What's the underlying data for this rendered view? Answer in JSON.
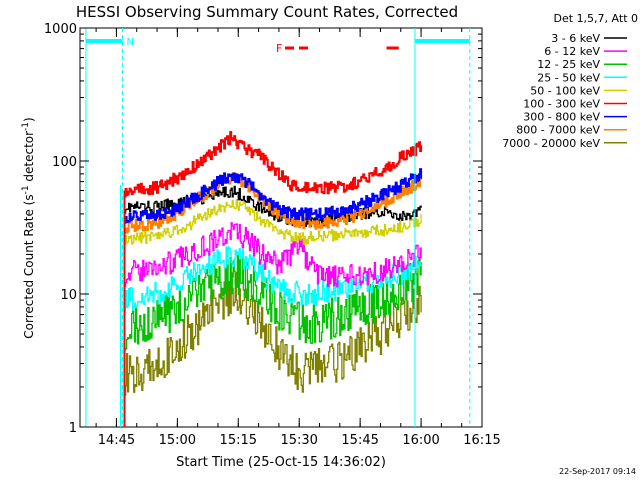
{
  "chart_data": {
    "type": "line",
    "title": "HESSI Observing Summary Count Rates, Corrected",
    "xlabel": "Start Time (25-Oct-15 14:36:02)",
    "ylabel_parts": [
      "Corrected Count Rate (s",
      "-1",
      " detector",
      "-1",
      ")"
    ],
    "yscale": "log",
    "ylim": [
      1,
      1000
    ],
    "xlim_minutes": [
      36.0333,
      135.0
    ],
    "x_unit_note": "minutes after 14:00 on 25-Oct-15",
    "y_ticks": [
      {
        "value": 1,
        "label": "1"
      },
      {
        "value": 10,
        "label": "10"
      },
      {
        "value": 100,
        "label": "100"
      },
      {
        "value": 1000,
        "label": "1000"
      }
    ],
    "x_ticks": [
      {
        "value": 45,
        "label": "14:45"
      },
      {
        "value": 60,
        "label": "15:00"
      },
      {
        "value": 75,
        "label": "15:15"
      },
      {
        "value": 90,
        "label": "15:30"
      },
      {
        "value": 105,
        "label": "15:45"
      },
      {
        "value": 120,
        "label": "16:00"
      },
      {
        "value": 135,
        "label": "16:15"
      }
    ],
    "legend_header": "Det 1,5,7, Att 0",
    "legend_position": "top-right",
    "series": [
      {
        "name": "3 - 6 keV",
        "color": "#000000",
        "points": [
          [
            47,
            45
          ],
          [
            55,
            45
          ],
          [
            62,
            50
          ],
          [
            70,
            55
          ],
          [
            73,
            60
          ],
          [
            76,
            55
          ],
          [
            80,
            45
          ],
          [
            85,
            38
          ],
          [
            90,
            35
          ],
          [
            95,
            35
          ],
          [
            100,
            38
          ],
          [
            105,
            40
          ],
          [
            110,
            42
          ],
          [
            113,
            40
          ],
          [
            115,
            38
          ],
          [
            118,
            40
          ],
          [
            120,
            42
          ]
        ]
      },
      {
        "name": "6 - 12 keV",
        "color": "#ff00ff",
        "points": [
          [
            47,
            14
          ],
          [
            55,
            16
          ],
          [
            60,
            18
          ],
          [
            65,
            22
          ],
          [
            70,
            26
          ],
          [
            74,
            30
          ],
          [
            78,
            24
          ],
          [
            82,
            18
          ],
          [
            85,
            17
          ],
          [
            88,
            20
          ],
          [
            90,
            25
          ],
          [
            92,
            17
          ],
          [
            95,
            14
          ],
          [
            100,
            13
          ],
          [
            105,
            14
          ],
          [
            110,
            15
          ],
          [
            115,
            17
          ],
          [
            120,
            20
          ]
        ]
      },
      {
        "name": "12 - 25 keV",
        "color": "#00c000",
        "points": [
          [
            47,
            5.5
          ],
          [
            55,
            6.5
          ],
          [
            60,
            8
          ],
          [
            65,
            10
          ],
          [
            70,
            12.5
          ],
          [
            74,
            14.5
          ],
          [
            78,
            12
          ],
          [
            82,
            9
          ],
          [
            86,
            7
          ],
          [
            90,
            6
          ],
          [
            95,
            6
          ],
          [
            100,
            7
          ],
          [
            105,
            8
          ],
          [
            110,
            9
          ],
          [
            115,
            11
          ],
          [
            120,
            13
          ]
        ]
      },
      {
        "name": "25 - 50 keV",
        "color": "#00ffff",
        "points": [
          [
            47,
            9
          ],
          [
            55,
            10
          ],
          [
            60,
            12
          ],
          [
            65,
            15
          ],
          [
            70,
            18
          ],
          [
            74,
            20
          ],
          [
            78,
            17
          ],
          [
            82,
            13
          ],
          [
            86,
            11
          ],
          [
            90,
            10
          ],
          [
            95,
            10
          ],
          [
            100,
            11
          ],
          [
            105,
            12
          ],
          [
            110,
            13
          ],
          [
            115,
            14
          ],
          [
            120,
            17
          ]
        ]
      },
      {
        "name": "50 - 100 keV",
        "color": "#d0d000",
        "points": [
          [
            47,
            26
          ],
          [
            55,
            27
          ],
          [
            60,
            30
          ],
          [
            65,
            36
          ],
          [
            70,
            44
          ],
          [
            74,
            48
          ],
          [
            78,
            42
          ],
          [
            82,
            33
          ],
          [
            86,
            28
          ],
          [
            90,
            26
          ],
          [
            95,
            27
          ],
          [
            100,
            28
          ],
          [
            105,
            29
          ],
          [
            110,
            30
          ],
          [
            115,
            32
          ],
          [
            120,
            36
          ]
        ]
      },
      {
        "name": "100 - 300 keV",
        "color": "#ff0000",
        "points": [
          [
            47,
            60
          ],
          [
            55,
            63
          ],
          [
            60,
            75
          ],
          [
            65,
            95
          ],
          [
            70,
            125
          ],
          [
            73,
            150
          ],
          [
            76,
            130
          ],
          [
            80,
            110
          ],
          [
            85,
            80
          ],
          [
            88,
            65
          ],
          [
            90,
            62
          ],
          [
            95,
            62
          ],
          [
            100,
            64
          ],
          [
            105,
            70
          ],
          [
            110,
            85
          ],
          [
            115,
            105
          ],
          [
            120,
            130
          ]
        ]
      },
      {
        "name": "300 - 800 keV",
        "color": "#0000ff",
        "points": [
          [
            47,
            38
          ],
          [
            55,
            40
          ],
          [
            60,
            44
          ],
          [
            65,
            55
          ],
          [
            70,
            70
          ],
          [
            74,
            78
          ],
          [
            78,
            65
          ],
          [
            82,
            50
          ],
          [
            86,
            42
          ],
          [
            90,
            40
          ],
          [
            95,
            40
          ],
          [
            100,
            42
          ],
          [
            105,
            47
          ],
          [
            110,
            55
          ],
          [
            115,
            65
          ],
          [
            120,
            80
          ]
        ]
      },
      {
        "name": "800 - 7000 keV",
        "color": "#ff8000",
        "points": [
          [
            47,
            32
          ],
          [
            55,
            34
          ],
          [
            60,
            40
          ],
          [
            65,
            52
          ],
          [
            70,
            66
          ],
          [
            74,
            75
          ],
          [
            78,
            63
          ],
          [
            82,
            47
          ],
          [
            86,
            38
          ],
          [
            90,
            34
          ],
          [
            95,
            34
          ],
          [
            100,
            36
          ],
          [
            105,
            40
          ],
          [
            110,
            48
          ],
          [
            115,
            58
          ],
          [
            120,
            70
          ]
        ]
      },
      {
        "name": "7000 - 20000 keV",
        "color": "#808000",
        "points": [
          [
            47,
            2.5
          ],
          [
            50,
            2.5
          ],
          [
            55,
            3
          ],
          [
            60,
            4
          ],
          [
            65,
            6
          ],
          [
            70,
            8
          ],
          [
            74,
            11
          ],
          [
            78,
            8
          ],
          [
            82,
            5
          ],
          [
            86,
            3.5
          ],
          [
            90,
            2.5
          ],
          [
            95,
            3
          ],
          [
            100,
            3
          ],
          [
            105,
            4
          ],
          [
            110,
            5
          ],
          [
            115,
            7
          ],
          [
            120,
            9
          ]
        ]
      }
    ],
    "annotations": {
      "night_label": "N",
      "flare_label": "F",
      "timestamp": "22-Sep-2017 09:14"
    },
    "intervals": {
      "night_segments": [
        [
          37.5,
          46.5
        ],
        [
          118.5,
          132.0
        ]
      ],
      "night_edges_solid": [
        37.5,
        118.5
      ],
      "night_edges_dashed": [
        46.5,
        132.0
      ],
      "flare_segments": [
        [
          86.5,
          93.0
        ],
        [
          111.5,
          114.5
        ]
      ],
      "gap_edge": 46.0
    },
    "colors": {
      "night": "#00ffff",
      "flare": "#ff0000"
    }
  }
}
